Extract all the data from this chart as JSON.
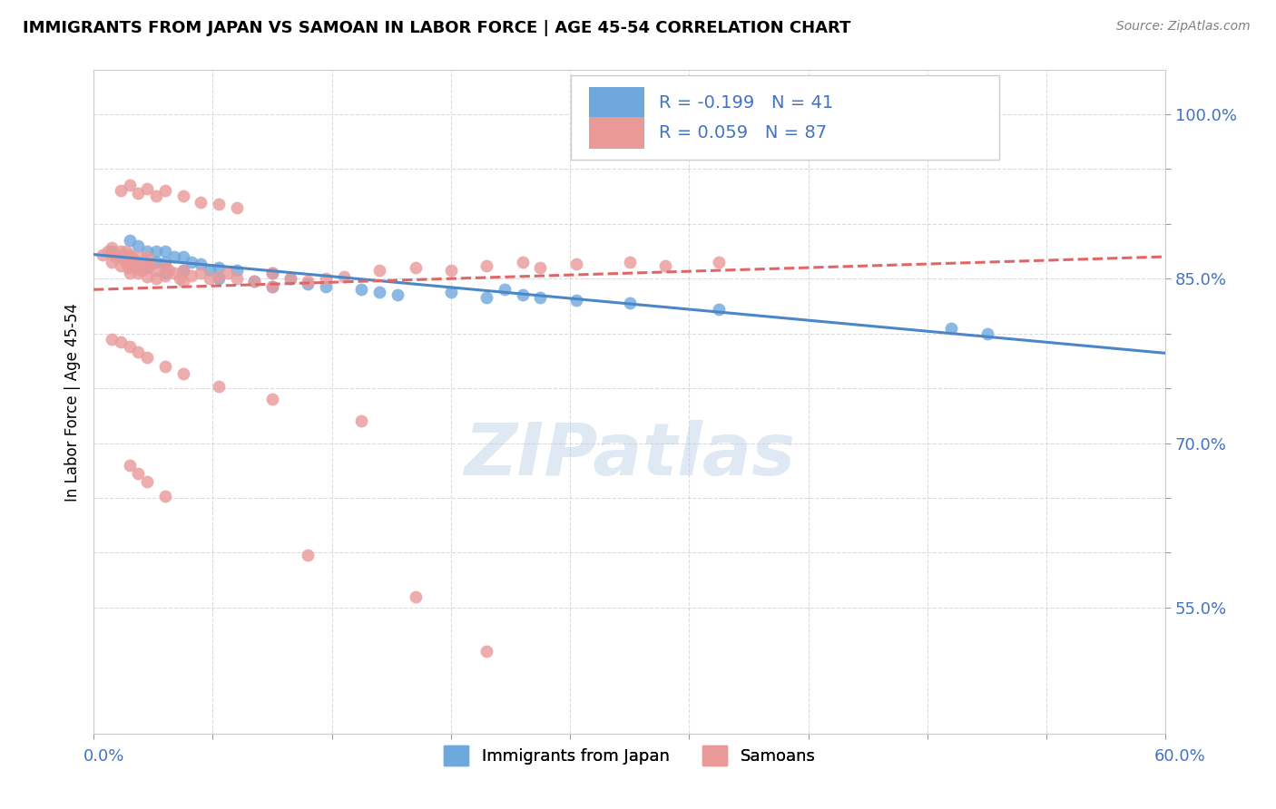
{
  "title": "IMMIGRANTS FROM JAPAN VS SAMOAN IN LABOR FORCE | AGE 45-54 CORRELATION CHART",
  "source": "Source: ZipAtlas.com",
  "ylabel": "In Labor Force | Age 45-54",
  "y_ticks": [
    0.55,
    0.6,
    0.65,
    0.7,
    0.75,
    0.8,
    0.85,
    0.9,
    0.95,
    1.0
  ],
  "y_tick_labels": [
    "55.0%",
    "",
    "",
    "70.0%",
    "",
    "",
    "85.0%",
    "",
    "",
    "100.0%"
  ],
  "xlim": [
    0.0,
    0.6
  ],
  "ylim": [
    0.435,
    1.04
  ],
  "legend_r_japan": "R = -0.199",
  "legend_n_japan": "N = 41",
  "legend_r_samoan": "R = 0.059",
  "legend_n_samoan": "N = 87",
  "color_japan": "#6fa8dc",
  "color_samoan": "#ea9999",
  "color_japan_line": "#4a86c8",
  "color_samoan_line": "#e06666",
  "watermark": "ZIPatlas",
  "japan_trend_x0": 0.0,
  "japan_trend_y0": 0.872,
  "japan_trend_x1": 0.6,
  "japan_trend_y1": 0.782,
  "samoan_trend_x0": 0.0,
  "samoan_trend_y0": 0.84,
  "samoan_trend_x1": 0.6,
  "samoan_trend_y1": 0.87,
  "japan_x": [
    0.01,
    0.015,
    0.02,
    0.02,
    0.025,
    0.025,
    0.03,
    0.03,
    0.035,
    0.035,
    0.04,
    0.04,
    0.04,
    0.045,
    0.05,
    0.05,
    0.055,
    0.06,
    0.065,
    0.07,
    0.07,
    0.08,
    0.09,
    0.1,
    0.1,
    0.11,
    0.12,
    0.13,
    0.15,
    0.16,
    0.17,
    0.2,
    0.22,
    0.23,
    0.24,
    0.25,
    0.27,
    0.3,
    0.35,
    0.48,
    0.5
  ],
  "japan_y": [
    0.875,
    0.87,
    0.885,
    0.87,
    0.88,
    0.865,
    0.875,
    0.86,
    0.875,
    0.865,
    0.875,
    0.865,
    0.855,
    0.87,
    0.87,
    0.858,
    0.865,
    0.863,
    0.858,
    0.86,
    0.85,
    0.858,
    0.848,
    0.855,
    0.843,
    0.85,
    0.845,
    0.843,
    0.84,
    0.838,
    0.835,
    0.838,
    0.833,
    0.84,
    0.835,
    0.833,
    0.83,
    0.828,
    0.822,
    0.805,
    0.8
  ],
  "samoan_x": [
    0.005,
    0.008,
    0.01,
    0.01,
    0.012,
    0.014,
    0.015,
    0.015,
    0.016,
    0.017,
    0.018,
    0.018,
    0.019,
    0.02,
    0.02,
    0.02,
    0.022,
    0.023,
    0.024,
    0.025,
    0.025,
    0.026,
    0.027,
    0.028,
    0.03,
    0.03,
    0.03,
    0.032,
    0.035,
    0.035,
    0.04,
    0.04,
    0.042,
    0.045,
    0.048,
    0.05,
    0.05,
    0.055,
    0.06,
    0.065,
    0.07,
    0.075,
    0.08,
    0.09,
    0.1,
    0.1,
    0.11,
    0.12,
    0.13,
    0.14,
    0.16,
    0.18,
    0.2,
    0.22,
    0.24,
    0.25,
    0.27,
    0.3,
    0.32,
    0.35,
    0.015,
    0.02,
    0.025,
    0.03,
    0.035,
    0.04,
    0.05,
    0.06,
    0.07,
    0.08,
    0.01,
    0.015,
    0.02,
    0.025,
    0.03,
    0.04,
    0.05,
    0.07,
    0.1,
    0.15,
    0.02,
    0.025,
    0.03,
    0.04,
    0.12,
    0.18,
    0.22
  ],
  "samoan_y": [
    0.872,
    0.875,
    0.878,
    0.865,
    0.87,
    0.872,
    0.875,
    0.862,
    0.868,
    0.872,
    0.875,
    0.865,
    0.86,
    0.872,
    0.863,
    0.855,
    0.868,
    0.865,
    0.86,
    0.87,
    0.855,
    0.862,
    0.858,
    0.865,
    0.87,
    0.86,
    0.852,
    0.863,
    0.858,
    0.85,
    0.862,
    0.853,
    0.858,
    0.855,
    0.85,
    0.858,
    0.848,
    0.853,
    0.855,
    0.85,
    0.852,
    0.855,
    0.85,
    0.848,
    0.855,
    0.843,
    0.85,
    0.848,
    0.85,
    0.852,
    0.858,
    0.86,
    0.858,
    0.862,
    0.865,
    0.86,
    0.863,
    0.865,
    0.862,
    0.865,
    0.93,
    0.935,
    0.928,
    0.932,
    0.925,
    0.93,
    0.925,
    0.92,
    0.918,
    0.915,
    0.795,
    0.792,
    0.788,
    0.783,
    0.778,
    0.77,
    0.763,
    0.752,
    0.74,
    0.72,
    0.68,
    0.672,
    0.665,
    0.652,
    0.598,
    0.56,
    0.51
  ]
}
